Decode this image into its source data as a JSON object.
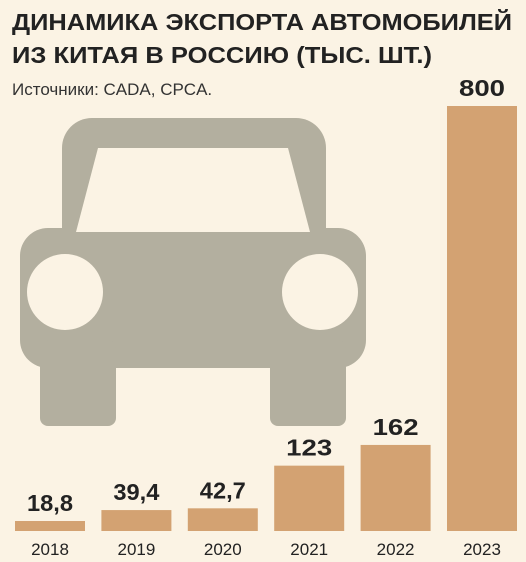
{
  "chart_data": {
    "type": "bar",
    "title": [
      "ДИНАМИКА ЭКСПОРТА АВТОМОБИЛЕЙ",
      "ИЗ КИТАЯ В РОССИЮ (ТЫС. ШТ.)"
    ],
    "subtitle": "Источники: CADA, CPCA.",
    "categories": [
      "2018",
      "2019",
      "2020",
      "2021",
      "2022",
      "2023"
    ],
    "values": [
      18.8,
      39.4,
      42.7,
      123,
      162,
      800
    ],
    "value_labels": [
      "18,8",
      "39,4",
      "42,7",
      "123",
      "162",
      "800"
    ],
    "color": "#d3a272",
    "ylim": [
      0,
      800
    ]
  }
}
